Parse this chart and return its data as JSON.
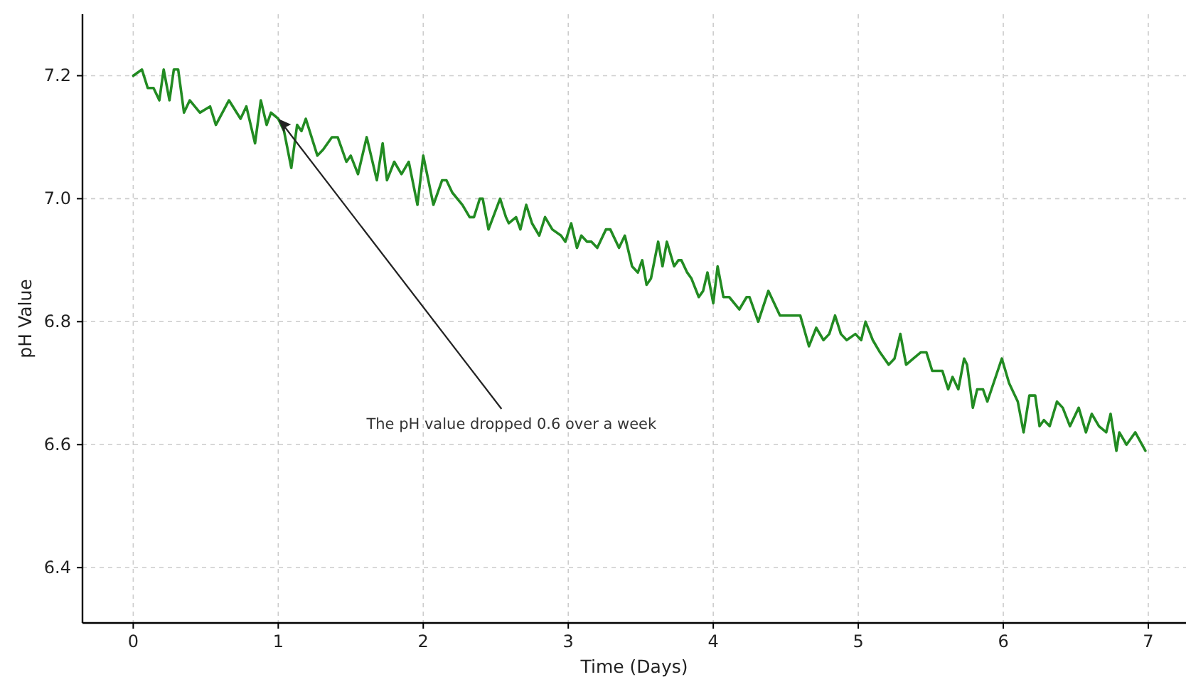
{
  "chart_data": {
    "type": "line",
    "xlabel": "Time (Days)",
    "ylabel": "pH Value",
    "annotations": [
      {
        "text": "The pH value dropped 0.6 over a week",
        "x": 1.0,
        "y": 7.13
      }
    ],
    "xlim": [
      -0.35,
      7.26
    ],
    "ylim": [
      6.31,
      7.3
    ],
    "xticks": [
      0,
      1,
      2,
      3,
      4,
      5,
      6,
      7
    ],
    "yticks": [
      {
        "value": 6.4,
        "label": "6.4"
      },
      {
        "value": 6.6,
        "label": "6.6"
      },
      {
        "value": 6.8,
        "label": "6.8"
      },
      {
        "value": 7.0,
        "label": "7.0"
      },
      {
        "value": 7.2,
        "label": "7.2"
      }
    ],
    "grid": true,
    "line_style": "solid",
    "marker": "none",
    "series": [
      {
        "color": "#228b22",
        "x": [
          0,
          0.06,
          0.1,
          0.14,
          0.18,
          0.21,
          0.25,
          0.28,
          0.31,
          0.35,
          0.39,
          0.46,
          0.53,
          0.57,
          0.66,
          0.74,
          0.78,
          0.84,
          0.88,
          0.92,
          0.95,
          1.0,
          1.04,
          1.09,
          1.13,
          1.16,
          1.19,
          1.27,
          1.31,
          1.37,
          1.41,
          1.47,
          1.5,
          1.55,
          1.61,
          1.68,
          1.72,
          1.75,
          1.8,
          1.85,
          1.9,
          1.96,
          2.0,
          2.07,
          2.13,
          2.16,
          2.2,
          2.27,
          2.32,
          2.35,
          2.39,
          2.41,
          2.45,
          2.53,
          2.57,
          2.59,
          2.64,
          2.67,
          2.71,
          2.75,
          2.8,
          2.84,
          2.89,
          2.95,
          2.98,
          3.02,
          3.06,
          3.09,
          3.13,
          3.16,
          3.2,
          3.26,
          3.29,
          3.35,
          3.39,
          3.44,
          3.48,
          3.51,
          3.54,
          3.57,
          3.62,
          3.65,
          3.68,
          3.73,
          3.76,
          3.78,
          3.82,
          3.85,
          3.9,
          3.93,
          3.96,
          4.0,
          4.03,
          4.07,
          4.11,
          4.18,
          4.23,
          4.25,
          4.31,
          4.38,
          4.46,
          4.51,
          4.58,
          4.6,
          4.66,
          4.71,
          4.76,
          4.8,
          4.84,
          4.88,
          4.92,
          4.98,
          5.02,
          5.05,
          5.1,
          5.15,
          5.21,
          5.25,
          5.29,
          5.33,
          5.38,
          5.43,
          5.47,
          5.51,
          5.54,
          5.58,
          5.62,
          5.65,
          5.69,
          5.73,
          5.75,
          5.79,
          5.82,
          5.86,
          5.89,
          5.99,
          6.04,
          6.1,
          6.14,
          6.18,
          6.22,
          6.25,
          6.28,
          6.32,
          6.37,
          6.41,
          6.46,
          6.52,
          6.57,
          6.61,
          6.66,
          6.71,
          6.74,
          6.78,
          6.8,
          6.85,
          6.91,
          6.98
        ],
        "values": [
          7.2,
          7.21,
          7.18,
          7.18,
          7.16,
          7.21,
          7.16,
          7.21,
          7.21,
          7.14,
          7.16,
          7.14,
          7.15,
          7.12,
          7.16,
          7.13,
          7.15,
          7.09,
          7.16,
          7.12,
          7.14,
          7.13,
          7.11,
          7.05,
          7.12,
          7.11,
          7.13,
          7.07,
          7.08,
          7.1,
          7.1,
          7.06,
          7.07,
          7.04,
          7.1,
          7.03,
          7.09,
          7.03,
          7.06,
          7.04,
          7.06,
          6.99,
          7.07,
          6.99,
          7.03,
          7.03,
          7.01,
          6.99,
          6.97,
          6.97,
          7.0,
          7.0,
          6.95,
          7.0,
          6.97,
          6.96,
          6.97,
          6.95,
          6.99,
          6.96,
          6.94,
          6.97,
          6.95,
          6.94,
          6.93,
          6.96,
          6.92,
          6.94,
          6.93,
          6.93,
          6.92,
          6.95,
          6.95,
          6.92,
          6.94,
          6.89,
          6.88,
          6.9,
          6.86,
          6.87,
          6.93,
          6.89,
          6.93,
          6.89,
          6.9,
          6.9,
          6.88,
          6.87,
          6.84,
          6.85,
          6.88,
          6.83,
          6.89,
          6.84,
          6.84,
          6.82,
          6.84,
          6.84,
          6.8,
          6.85,
          6.81,
          6.81,
          6.81,
          6.81,
          6.76,
          6.79,
          6.77,
          6.78,
          6.81,
          6.78,
          6.77,
          6.78,
          6.77,
          6.8,
          6.77,
          6.75,
          6.73,
          6.74,
          6.78,
          6.73,
          6.74,
          6.75,
          6.75,
          6.72,
          6.72,
          6.72,
          6.69,
          6.71,
          6.69,
          6.74,
          6.73,
          6.66,
          6.69,
          6.69,
          6.67,
          6.74,
          6.7,
          6.67,
          6.62,
          6.68,
          6.68,
          6.63,
          6.64,
          6.63,
          6.67,
          6.66,
          6.63,
          6.66,
          6.62,
          6.65,
          6.63,
          6.62,
          6.65,
          6.59,
          6.62,
          6.6,
          6.62,
          6.59
        ]
      }
    ]
  }
}
